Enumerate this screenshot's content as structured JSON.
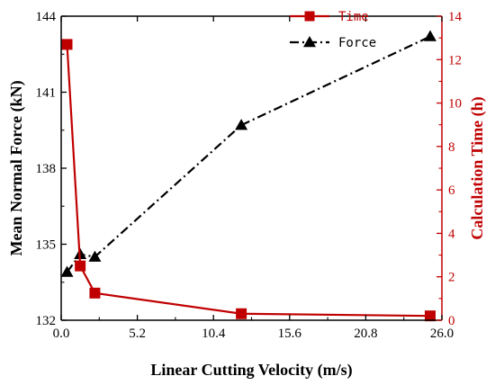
{
  "chart_data": {
    "type": "line",
    "xlabel": "Linear Cutting Velocity (m/s)",
    "ylabel_left": "Mean Normal Force (kN)",
    "ylabel_right": "Calculation Time (h)",
    "xlim": [
      0,
      26
    ],
    "ylim_left": [
      132,
      144
    ],
    "ylim_right": [
      0,
      14
    ],
    "x_ticks": [
      "0.0",
      "5.2",
      "10.4",
      "15.6",
      "20.8",
      "26.0"
    ],
    "y_left_ticks": [
      "132",
      "135",
      "138",
      "141",
      "144"
    ],
    "y_right_ticks": [
      "0",
      "2",
      "4",
      "6",
      "8",
      "10",
      "12",
      "14"
    ],
    "legend_position": "top-right",
    "series": [
      {
        "name": "Time",
        "axis": "right",
        "color": "#c00000",
        "marker": "square",
        "line_style": "solid",
        "x": [
          0.4,
          1.3,
          2.3,
          12.3,
          25.2
        ],
        "y": [
          12.7,
          2.5,
          1.25,
          0.3,
          0.2
        ]
      },
      {
        "name": "Force",
        "axis": "left",
        "color": "#000000",
        "marker": "triangle",
        "line_style": "dashdot",
        "x": [
          0.4,
          1.3,
          2.3,
          12.3,
          25.2
        ],
        "y": [
          133.9,
          134.6,
          134.5,
          139.7,
          143.2
        ]
      }
    ]
  }
}
